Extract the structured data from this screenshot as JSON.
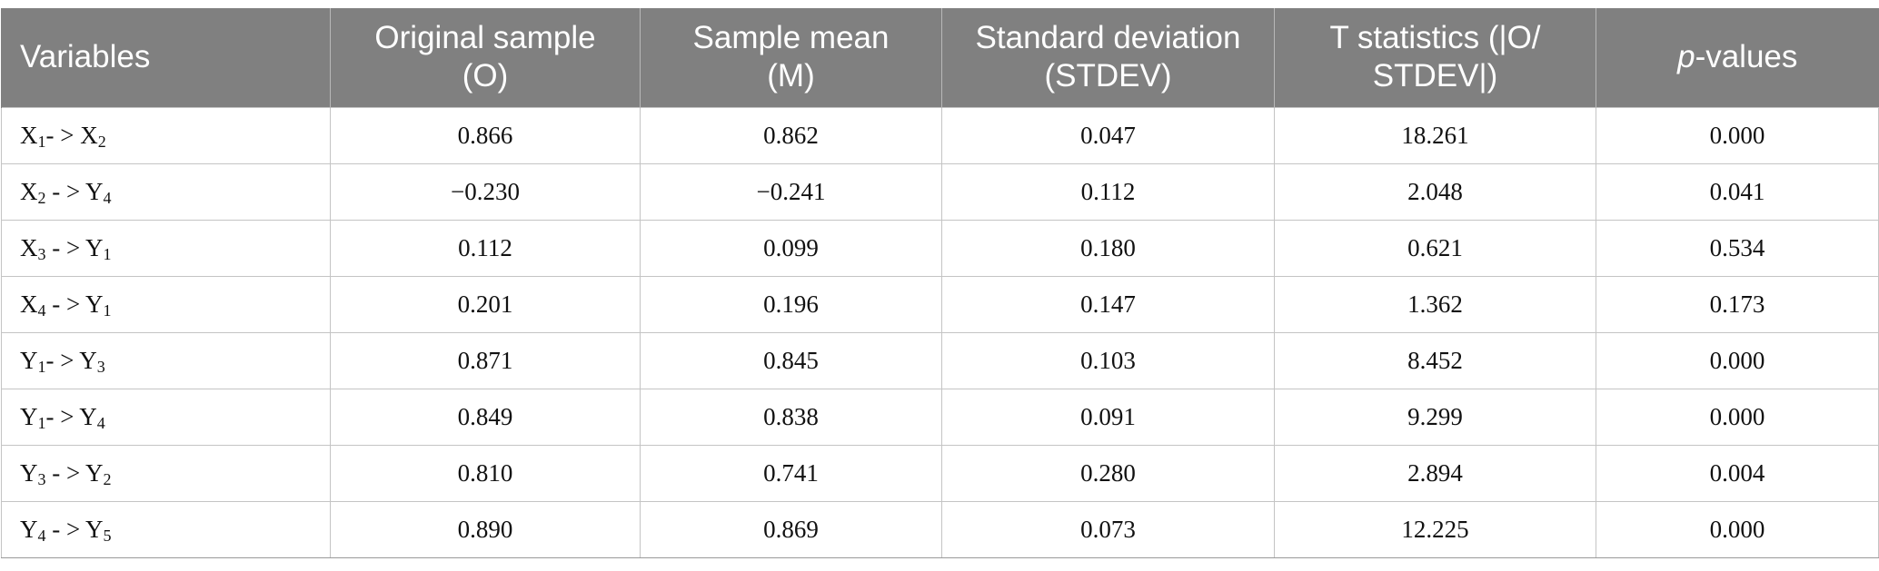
{
  "header": {
    "c0": "Variables",
    "c1a": "Original sample",
    "c1b": "(O)",
    "c2a": "Sample mean",
    "c2b": "(M)",
    "c3a": "Standard deviation",
    "c3b": "(STDEV)",
    "c4a": "T statistics (|O/",
    "c4b": "STDEV|)",
    "c5_italic": "p",
    "c5_rest": "-values"
  },
  "rows": [
    {
      "from": "X",
      "from_sub": "1",
      "arrow": "- > ",
      "to": "X",
      "to_sub": "2",
      "o": "0.866",
      "m": "0.862",
      "stdev": "0.047",
      "t": "18.261",
      "p": "0.000"
    },
    {
      "from": "X",
      "from_sub": "2",
      "arrow": " - > ",
      "to": "Y",
      "to_sub": "4",
      "o": "−0.230",
      "m": "−0.241",
      "stdev": "0.112",
      "t": "2.048",
      "p": "0.041"
    },
    {
      "from": "X",
      "from_sub": "3",
      "arrow": " - > ",
      "to": "Y",
      "to_sub": "1",
      "o": "0.112",
      "m": "0.099",
      "stdev": "0.180",
      "t": "0.621",
      "p": "0.534"
    },
    {
      "from": "X",
      "from_sub": "4",
      "arrow": " - > ",
      "to": "Y",
      "to_sub": "1",
      "o": "0.201",
      "m": "0.196",
      "stdev": "0.147",
      "t": "1.362",
      "p": "0.173"
    },
    {
      "from": "Y",
      "from_sub": "1",
      "arrow": "- > ",
      "to": "Y",
      "to_sub": "3",
      "o": "0.871",
      "m": "0.845",
      "stdev": "0.103",
      "t": "8.452",
      "p": "0.000"
    },
    {
      "from": "Y",
      "from_sub": "1",
      "arrow": "- > ",
      "to": "Y",
      "to_sub": "4",
      "o": "0.849",
      "m": "0.838",
      "stdev": "0.091",
      "t": "9.299",
      "p": "0.000"
    },
    {
      "from": "Y",
      "from_sub": "3",
      "arrow": " - > ",
      "to": "Y",
      "to_sub": "2",
      "o": "0.810",
      "m": "0.741",
      "stdev": "0.280",
      "t": "2.894",
      "p": "0.004"
    },
    {
      "from": "Y",
      "from_sub": "4",
      "arrow": " - > ",
      "to": "Y",
      "to_sub": "5",
      "o": "0.890",
      "m": "0.869",
      "stdev": "0.073",
      "t": "12.225",
      "p": "0.000"
    }
  ]
}
